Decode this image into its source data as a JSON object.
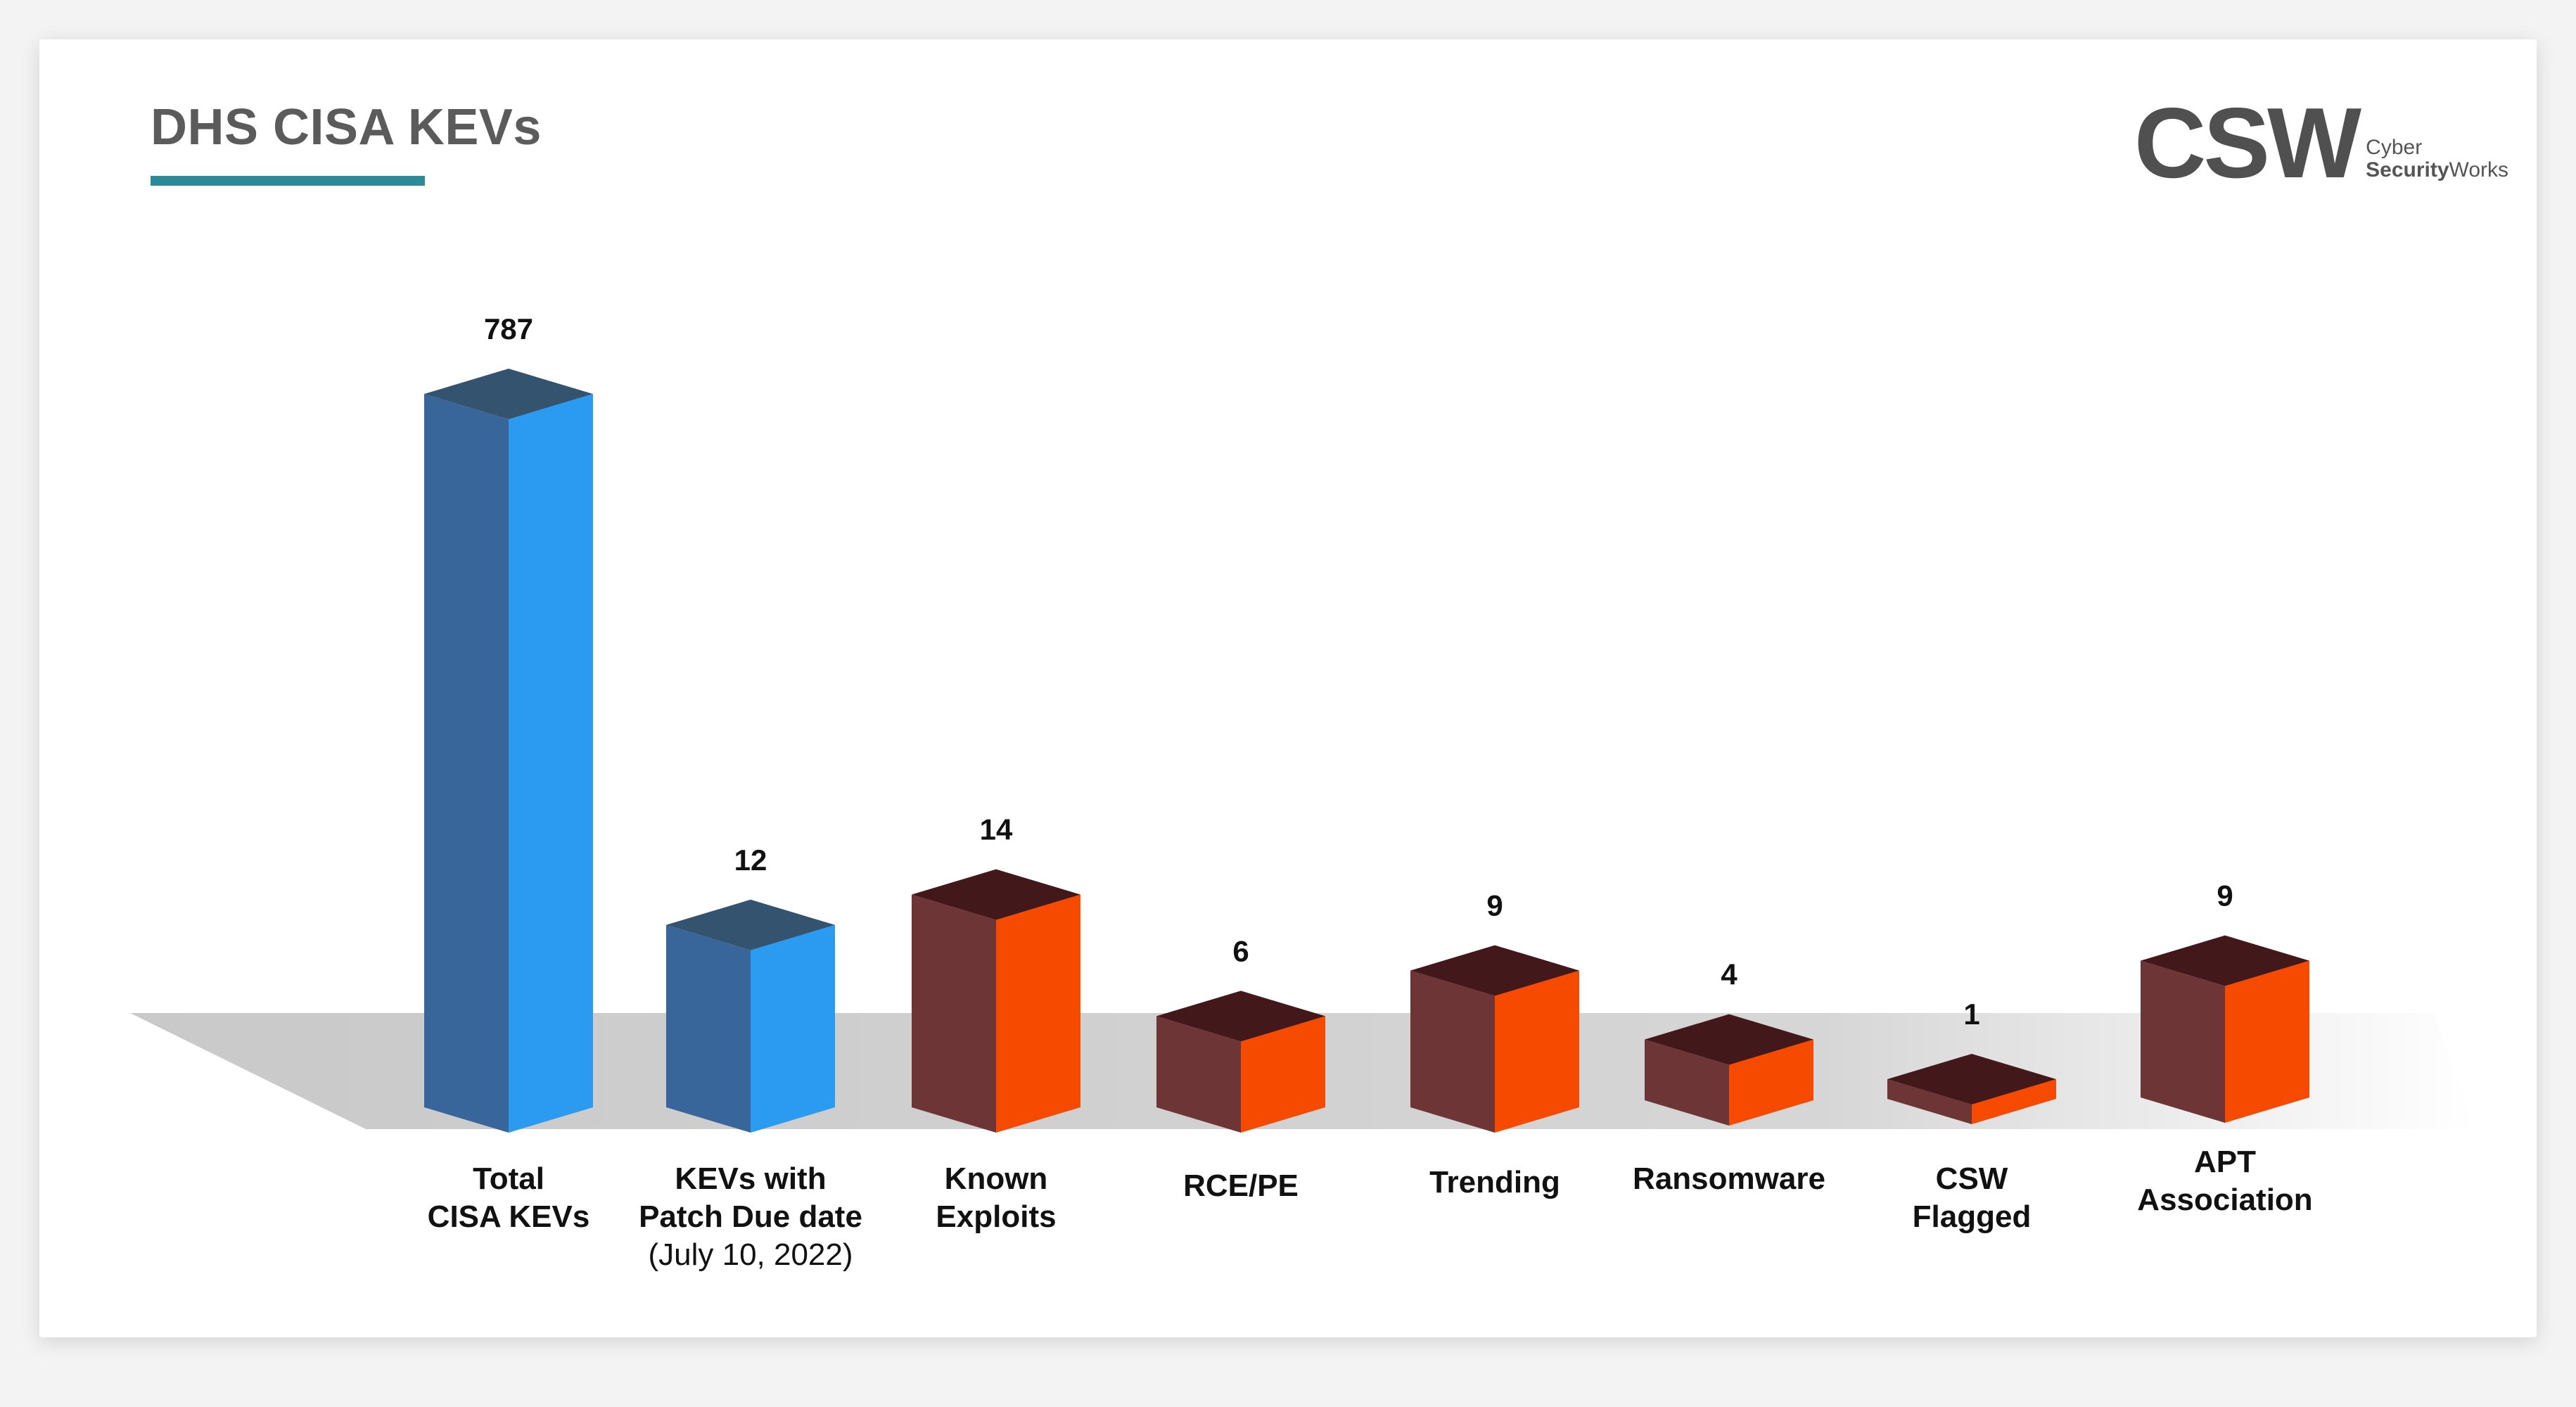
{
  "title": "DHS CISA KEVs",
  "logo": {
    "mark": "CSW",
    "line1": "Cyber",
    "line2_bold": "Security",
    "line2_rest": "Works"
  },
  "colors": {
    "accent_underline": "#2e8a96",
    "blue_front": "#38669a",
    "blue_side": "#2a9bf0",
    "blue_top": "#33536e",
    "orange_front": "#6d3535",
    "orange_side": "#f64a00",
    "orange_top": "#43181a"
  },
  "chart_data": {
    "type": "bar",
    "title": "DHS CISA KEVs",
    "categories": [
      [
        "Total",
        "CISA KEVs"
      ],
      [
        "KEVs with",
        "Patch Due date",
        "(July 10, 2022)"
      ],
      [
        "Known",
        "Exploits"
      ],
      [
        "RCE/PE"
      ],
      [
        "Trending"
      ],
      [
        "Ransomware"
      ],
      [
        "CSW",
        "Flagged"
      ],
      [
        "APT",
        "Association"
      ]
    ],
    "values": [
      787,
      12,
      14,
      6,
      9,
      4,
      1,
      9
    ],
    "value_labels": [
      "787",
      "12",
      "14",
      "6",
      "9",
      "4",
      "1",
      "9"
    ],
    "bar_colors": [
      "blue",
      "blue",
      "orange",
      "orange",
      "orange",
      "orange",
      "orange",
      "orange"
    ],
    "xlabel": "",
    "ylabel": "",
    "grid": false,
    "legend": "none"
  }
}
